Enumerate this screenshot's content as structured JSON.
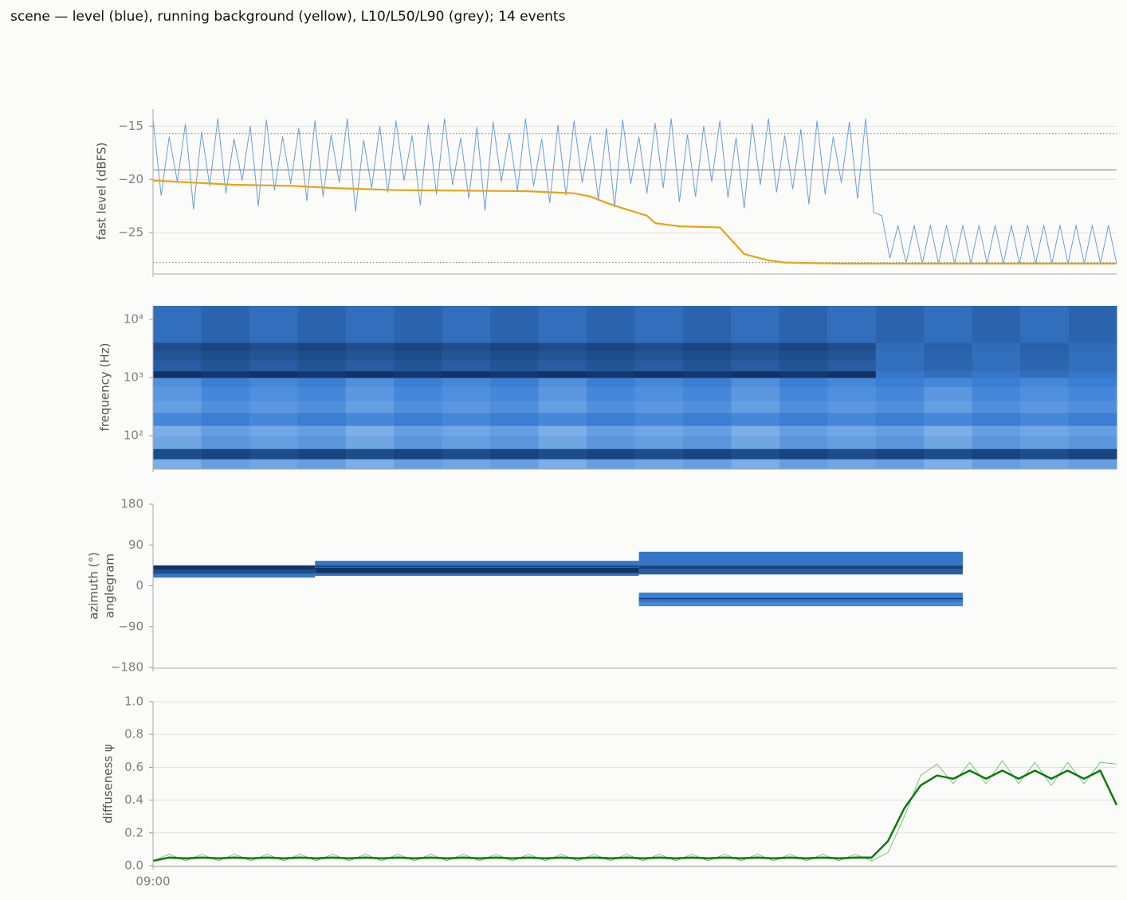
{
  "title": "scene — level (blue), running background (yellow), L10/L50/L90 (grey); 14 events",
  "chart_data": [
    {
      "type": "line",
      "ylabel": "fast level (dBFS)",
      "xlim": [
        0,
        119
      ],
      "ylim": [
        -28.8,
        -13.4
      ],
      "yticks": [
        {
          "value": -25,
          "label": "−25"
        },
        {
          "value": -20,
          "label": "−20"
        },
        {
          "value": -15,
          "label": "−15"
        }
      ],
      "grid": true,
      "percentile_levels": [
        -15.7,
        -19.1,
        -27.8
      ],
      "percentile_styles": [
        "dotted",
        "solid",
        "dotted"
      ],
      "percentile_color": "#777777",
      "series": [
        {
          "name": "level",
          "color": "#6a9fd8",
          "line_width": 1,
          "values": [
            -14.3,
            -21.5,
            -16,
            -20.2,
            -14.8,
            -22.8,
            -15.5,
            -20.6,
            -14.3,
            -21.3,
            -16.2,
            -20.1,
            -15,
            -22.5,
            -14.4,
            -21,
            -16,
            -20.4,
            -15.2,
            -22,
            -14.5,
            -21.6,
            -15.8,
            -20.3,
            -14.3,
            -23,
            -16.3,
            -20.8,
            -15,
            -21.2,
            -14.5,
            -20.1,
            -15.9,
            -22.4,
            -14.8,
            -21.4,
            -14.3,
            -20.5,
            -16.1,
            -21.8,
            -15.1,
            -22.9,
            -14.6,
            -20.2,
            -15.7,
            -21.1,
            -14.3,
            -20.6,
            -16.2,
            -22.2,
            -14.9,
            -21.5,
            -14.5,
            -20.3,
            -15.9,
            -21.9,
            -15.2,
            -22.6,
            -14.4,
            -20.4,
            -16,
            -21.3,
            -14.7,
            -20.8,
            -14.3,
            -22.1,
            -15.8,
            -21.6,
            -15,
            -20.2,
            -14.5,
            -21.7,
            -16.1,
            -22.7,
            -14.8,
            -20.5,
            -14.3,
            -21.2,
            -15.9,
            -20.9,
            -15.3,
            -22.3,
            -14.5,
            -21.4,
            -16,
            -20.3,
            -14.6,
            -21.8,
            -14.3,
            -23.1,
            -23.4,
            -27.4,
            -24.3,
            -27.9,
            -24.3,
            -27.9,
            -24.3,
            -27.9,
            -24.3,
            -27.9,
            -24.3,
            -27.9,
            -24.3,
            -27.9,
            -24.3,
            -27.9,
            -24.3,
            -27.9,
            -24.3,
            -27.9,
            -24.3,
            -27.9,
            -24.3,
            -27.9,
            -24.3,
            -27.9,
            -24.3,
            -27.9,
            -24.3,
            -27.9
          ]
        },
        {
          "name": "running background",
          "color": "#e8a317",
          "line_width": 2.2,
          "x": [
            0,
            5,
            10,
            17,
            22,
            30,
            46,
            52,
            54,
            56,
            58,
            61,
            62,
            64,
            65,
            70,
            73,
            76,
            78,
            85,
            119
          ],
          "values": [
            -20.1,
            -20.3,
            -20.5,
            -20.6,
            -20.8,
            -21,
            -21.1,
            -21.3,
            -21.6,
            -22.2,
            -22.7,
            -23.4,
            -24.1,
            -24.3,
            -24.4,
            -24.5,
            -27,
            -27.6,
            -27.8,
            -27.9,
            -27.9
          ]
        }
      ]
    },
    {
      "type": "spectrogram",
      "ylabel": "frequency (Hz)",
      "log_y": true,
      "ylim": [
        27.5,
        17100
      ],
      "yticks": [
        {
          "value": 100,
          "label": "10²"
        },
        {
          "value": 1000,
          "label": "10³"
        },
        {
          "value": 10000,
          "label": "10⁴"
        }
      ],
      "grid": false,
      "colormap": [
        "#a8cdf5",
        "#3a7fd5",
        "#0c2b57"
      ],
      "freq_edges": [
        27.5,
        40,
        60,
        100,
        150,
        250,
        400,
        700,
        1000,
        1300,
        2000,
        3000,
        4000,
        17100
      ],
      "intensity": [
        [
          0.2,
          0.3,
          0.25,
          0.3,
          0.2,
          0.3,
          0.25,
          0.3,
          0.2,
          0.3,
          0.25,
          0.3,
          0.2,
          0.3,
          0.25,
          0.3,
          0.2,
          0.3,
          0.25,
          0.3
        ],
        [
          0.8,
          0.85,
          0.8,
          0.85,
          0.8,
          0.85,
          0.8,
          0.85,
          0.8,
          0.85,
          0.8,
          0.85,
          0.8,
          0.85,
          0.8,
          0.85,
          0.8,
          0.85,
          0.8,
          0.85
        ],
        [
          0.25,
          0.35,
          0.3,
          0.35,
          0.25,
          0.35,
          0.3,
          0.35,
          0.25,
          0.35,
          0.3,
          0.35,
          0.25,
          0.35,
          0.3,
          0.35,
          0.25,
          0.35,
          0.3,
          0.35
        ],
        [
          0.2,
          0.3,
          0.25,
          0.3,
          0.2,
          0.3,
          0.25,
          0.3,
          0.2,
          0.3,
          0.25,
          0.3,
          0.2,
          0.3,
          0.25,
          0.3,
          0.2,
          0.3,
          0.25,
          0.3
        ],
        [
          0.45,
          0.5,
          0.45,
          0.5,
          0.45,
          0.5,
          0.45,
          0.5,
          0.45,
          0.5,
          0.45,
          0.5,
          0.45,
          0.5,
          0.45,
          0.5,
          0.45,
          0.5,
          0.45,
          0.5
        ],
        [
          0.3,
          0.4,
          0.35,
          0.4,
          0.3,
          0.4,
          0.35,
          0.4,
          0.3,
          0.4,
          0.35,
          0.4,
          0.3,
          0.4,
          0.35,
          0.4,
          0.3,
          0.4,
          0.35,
          0.4
        ],
        [
          0.35,
          0.45,
          0.4,
          0.45,
          0.35,
          0.45,
          0.4,
          0.45,
          0.35,
          0.45,
          0.4,
          0.45,
          0.35,
          0.45,
          0.4,
          0.45,
          0.35,
          0.45,
          0.4,
          0.45
        ],
        [
          0.4,
          0.5,
          0.45,
          0.5,
          0.4,
          0.5,
          0.45,
          0.5,
          0.4,
          0.5,
          0.45,
          0.5,
          0.4,
          0.5,
          0.45,
          0.5,
          0.45,
          0.5,
          0.45,
          0.5
        ],
        [
          0.95,
          0.92,
          0.95,
          0.92,
          0.95,
          0.92,
          0.95,
          0.92,
          0.95,
          0.92,
          0.95,
          0.92,
          0.95,
          0.92,
          0.95,
          0.55,
          0.6,
          0.55,
          0.6,
          0.55
        ],
        [
          0.7,
          0.75,
          0.7,
          0.75,
          0.7,
          0.75,
          0.7,
          0.75,
          0.7,
          0.75,
          0.7,
          0.75,
          0.7,
          0.75,
          0.7,
          0.6,
          0.65,
          0.6,
          0.65,
          0.6
        ],
        [
          0.75,
          0.8,
          0.75,
          0.8,
          0.75,
          0.8,
          0.75,
          0.8,
          0.75,
          0.8,
          0.75,
          0.8,
          0.75,
          0.8,
          0.75,
          0.6,
          0.66,
          0.6,
          0.66,
          0.6
        ],
        [
          0.8,
          0.85,
          0.8,
          0.85,
          0.8,
          0.85,
          0.8,
          0.85,
          0.8,
          0.85,
          0.8,
          0.85,
          0.8,
          0.85,
          0.8,
          0.62,
          0.68,
          0.62,
          0.68,
          0.62
        ],
        [
          0.6,
          0.66,
          0.6,
          0.66,
          0.6,
          0.66,
          0.6,
          0.66,
          0.6,
          0.66,
          0.6,
          0.66,
          0.6,
          0.66,
          0.6,
          0.66,
          0.6,
          0.66,
          0.6,
          0.66
        ]
      ]
    },
    {
      "type": "cells",
      "ylabel": [
        "azimuth (°)",
        "anglegram"
      ],
      "xlim": [
        0,
        119
      ],
      "ylim": [
        -180,
        180
      ],
      "yticks": [
        {
          "value": -180,
          "label": "−180"
        },
        {
          "value": -90,
          "label": "−90"
        },
        0,
        90,
        180
      ],
      "grid": false,
      "colormap": [
        "#a8cdf5",
        "#3a7fd5",
        "#0c2b57"
      ],
      "cells": [
        {
          "t0": 0,
          "t1": 20,
          "az0": 18,
          "az1": 26,
          "level": 0.55
        },
        {
          "t0": 0,
          "t1": 20,
          "az0": 26,
          "az1": 36,
          "level": 0.8
        },
        {
          "t0": 0,
          "t1": 20,
          "az0": 36,
          "az1": 45,
          "level": 0.95
        },
        {
          "t0": 20,
          "t1": 60,
          "az0": 22,
          "az1": 28,
          "level": 0.6
        },
        {
          "t0": 20,
          "t1": 60,
          "az0": 28,
          "az1": 40,
          "level": 0.95
        },
        {
          "t0": 20,
          "t1": 60,
          "az0": 40,
          "az1": 46,
          "level": 0.8
        },
        {
          "t0": 20,
          "t1": 60,
          "az0": 46,
          "az1": 55,
          "level": 0.55
        },
        {
          "t0": 60,
          "t1": 100,
          "az0": 25,
          "az1": 37,
          "level": 0.7
        },
        {
          "t0": 60,
          "t1": 100,
          "az0": 37,
          "az1": 45,
          "level": 0.85
        },
        {
          "t0": 60,
          "t1": 100,
          "az0": 45,
          "az1": 75,
          "level": 0.55
        },
        {
          "t0": 60,
          "t1": 100,
          "az0": -45,
          "az1": -37,
          "level": 0.45
        },
        {
          "t0": 60,
          "t1": 100,
          "az0": -37,
          "az1": -30,
          "level": 0.55
        },
        {
          "t0": 60,
          "t1": 100,
          "az0": -30,
          "az1": -26,
          "level": 0.85
        },
        {
          "t0": 60,
          "t1": 100,
          "az0": -26,
          "az1": -15,
          "level": 0.5
        }
      ]
    },
    {
      "type": "line",
      "ylabel": "diffuseness ψ",
      "xlim": [
        0,
        59
      ],
      "ylim": [
        0,
        1
      ],
      "yticks": [
        {
          "value": 0,
          "label": "0.0"
        },
        0.2,
        0.4,
        0.6,
        0.8,
        {
          "value": 1,
          "label": "1.0"
        }
      ],
      "grid": true,
      "xticks": [
        {
          "value": 0,
          "label": "09:00"
        }
      ],
      "series": [
        {
          "name": "raw",
          "color": "#6abf69",
          "line_width": 0.9,
          "values": [
            0.03,
            0.07,
            0.03,
            0.07,
            0.03,
            0.07,
            0.03,
            0.07,
            0.03,
            0.07,
            0.03,
            0.07,
            0.03,
            0.07,
            0.03,
            0.07,
            0.03,
            0.07,
            0.03,
            0.07,
            0.03,
            0.07,
            0.03,
            0.07,
            0.03,
            0.07,
            0.03,
            0.07,
            0.03,
            0.07,
            0.03,
            0.07,
            0.03,
            0.07,
            0.03,
            0.07,
            0.03,
            0.07,
            0.03,
            0.07,
            0.03,
            0.07,
            0.03,
            0.07,
            0.03,
            0.08,
            0.3,
            0.55,
            0.62,
            0.5,
            0.63,
            0.5,
            0.64,
            0.5,
            0.63,
            0.49,
            0.63,
            0.5,
            0.63,
            0.62
          ]
        },
        {
          "name": "smoothed",
          "color": "#0a7a0a",
          "line_width": 2.5,
          "values": [
            0.03,
            0.05,
            0.045,
            0.05,
            0.045,
            0.05,
            0.045,
            0.05,
            0.045,
            0.05,
            0.045,
            0.05,
            0.045,
            0.05,
            0.045,
            0.05,
            0.045,
            0.05,
            0.045,
            0.05,
            0.045,
            0.05,
            0.045,
            0.05,
            0.045,
            0.05,
            0.045,
            0.05,
            0.045,
            0.05,
            0.045,
            0.05,
            0.045,
            0.05,
            0.045,
            0.05,
            0.045,
            0.05,
            0.045,
            0.05,
            0.045,
            0.05,
            0.045,
            0.05,
            0.05,
            0.15,
            0.35,
            0.49,
            0.55,
            0.53,
            0.58,
            0.53,
            0.58,
            0.53,
            0.58,
            0.53,
            0.58,
            0.53,
            0.58,
            0.37
          ]
        }
      ]
    }
  ]
}
